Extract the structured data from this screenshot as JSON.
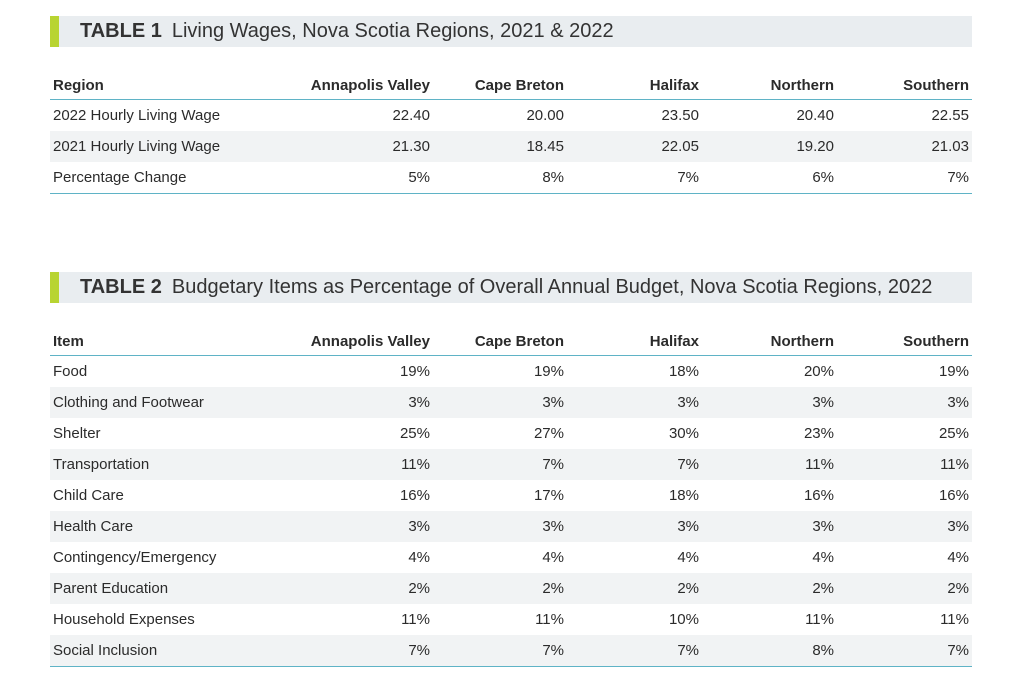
{
  "tables": [
    {
      "label": "TABLE 1",
      "title": "Living Wages, Nova Scotia Regions, 2021 & 2022",
      "header": [
        "Region",
        "Annapolis Valley",
        "Cape Breton",
        "Halifax",
        "Northern",
        "Southern"
      ],
      "rows": [
        [
          "2022 Hourly Living Wage",
          "22.40",
          "20.00",
          "23.50",
          "20.40",
          "22.55"
        ],
        [
          "2021 Hourly Living Wage",
          "21.30",
          "18.45",
          "22.05",
          "19.20",
          "21.03"
        ],
        [
          "Percentage Change",
          "5%",
          "8%",
          "7%",
          "6%",
          "7%"
        ]
      ]
    },
    {
      "label": "TABLE 2",
      "title": "Budgetary Items as Percentage of Overall Annual Budget, Nova Scotia Regions, 2022",
      "header": [
        "Item",
        "Annapolis Valley",
        "Cape Breton",
        "Halifax",
        "Northern",
        "Southern"
      ],
      "rows": [
        [
          "Food",
          "19%",
          "19%",
          "18%",
          "20%",
          "19%"
        ],
        [
          "Clothing and Footwear",
          "3%",
          "3%",
          "3%",
          "3%",
          "3%"
        ],
        [
          "Shelter",
          "25%",
          "27%",
          "30%",
          "23%",
          "25%"
        ],
        [
          "Transportation",
          "11%",
          "7%",
          "7%",
          "11%",
          "11%"
        ],
        [
          "Child Care",
          "16%",
          "17%",
          "18%",
          "16%",
          "16%"
        ],
        [
          "Health Care",
          "3%",
          "3%",
          "3%",
          "3%",
          "3%"
        ],
        [
          "Contingency/Emergency",
          "4%",
          "4%",
          "4%",
          "4%",
          "4%"
        ],
        [
          "Parent Education",
          "2%",
          "2%",
          "2%",
          "2%",
          "2%"
        ],
        [
          "Household Expenses",
          "11%",
          "11%",
          "10%",
          "11%",
          "11%"
        ],
        [
          "Social Inclusion",
          "7%",
          "7%",
          "7%",
          "8%",
          "7%"
        ]
      ]
    }
  ]
}
